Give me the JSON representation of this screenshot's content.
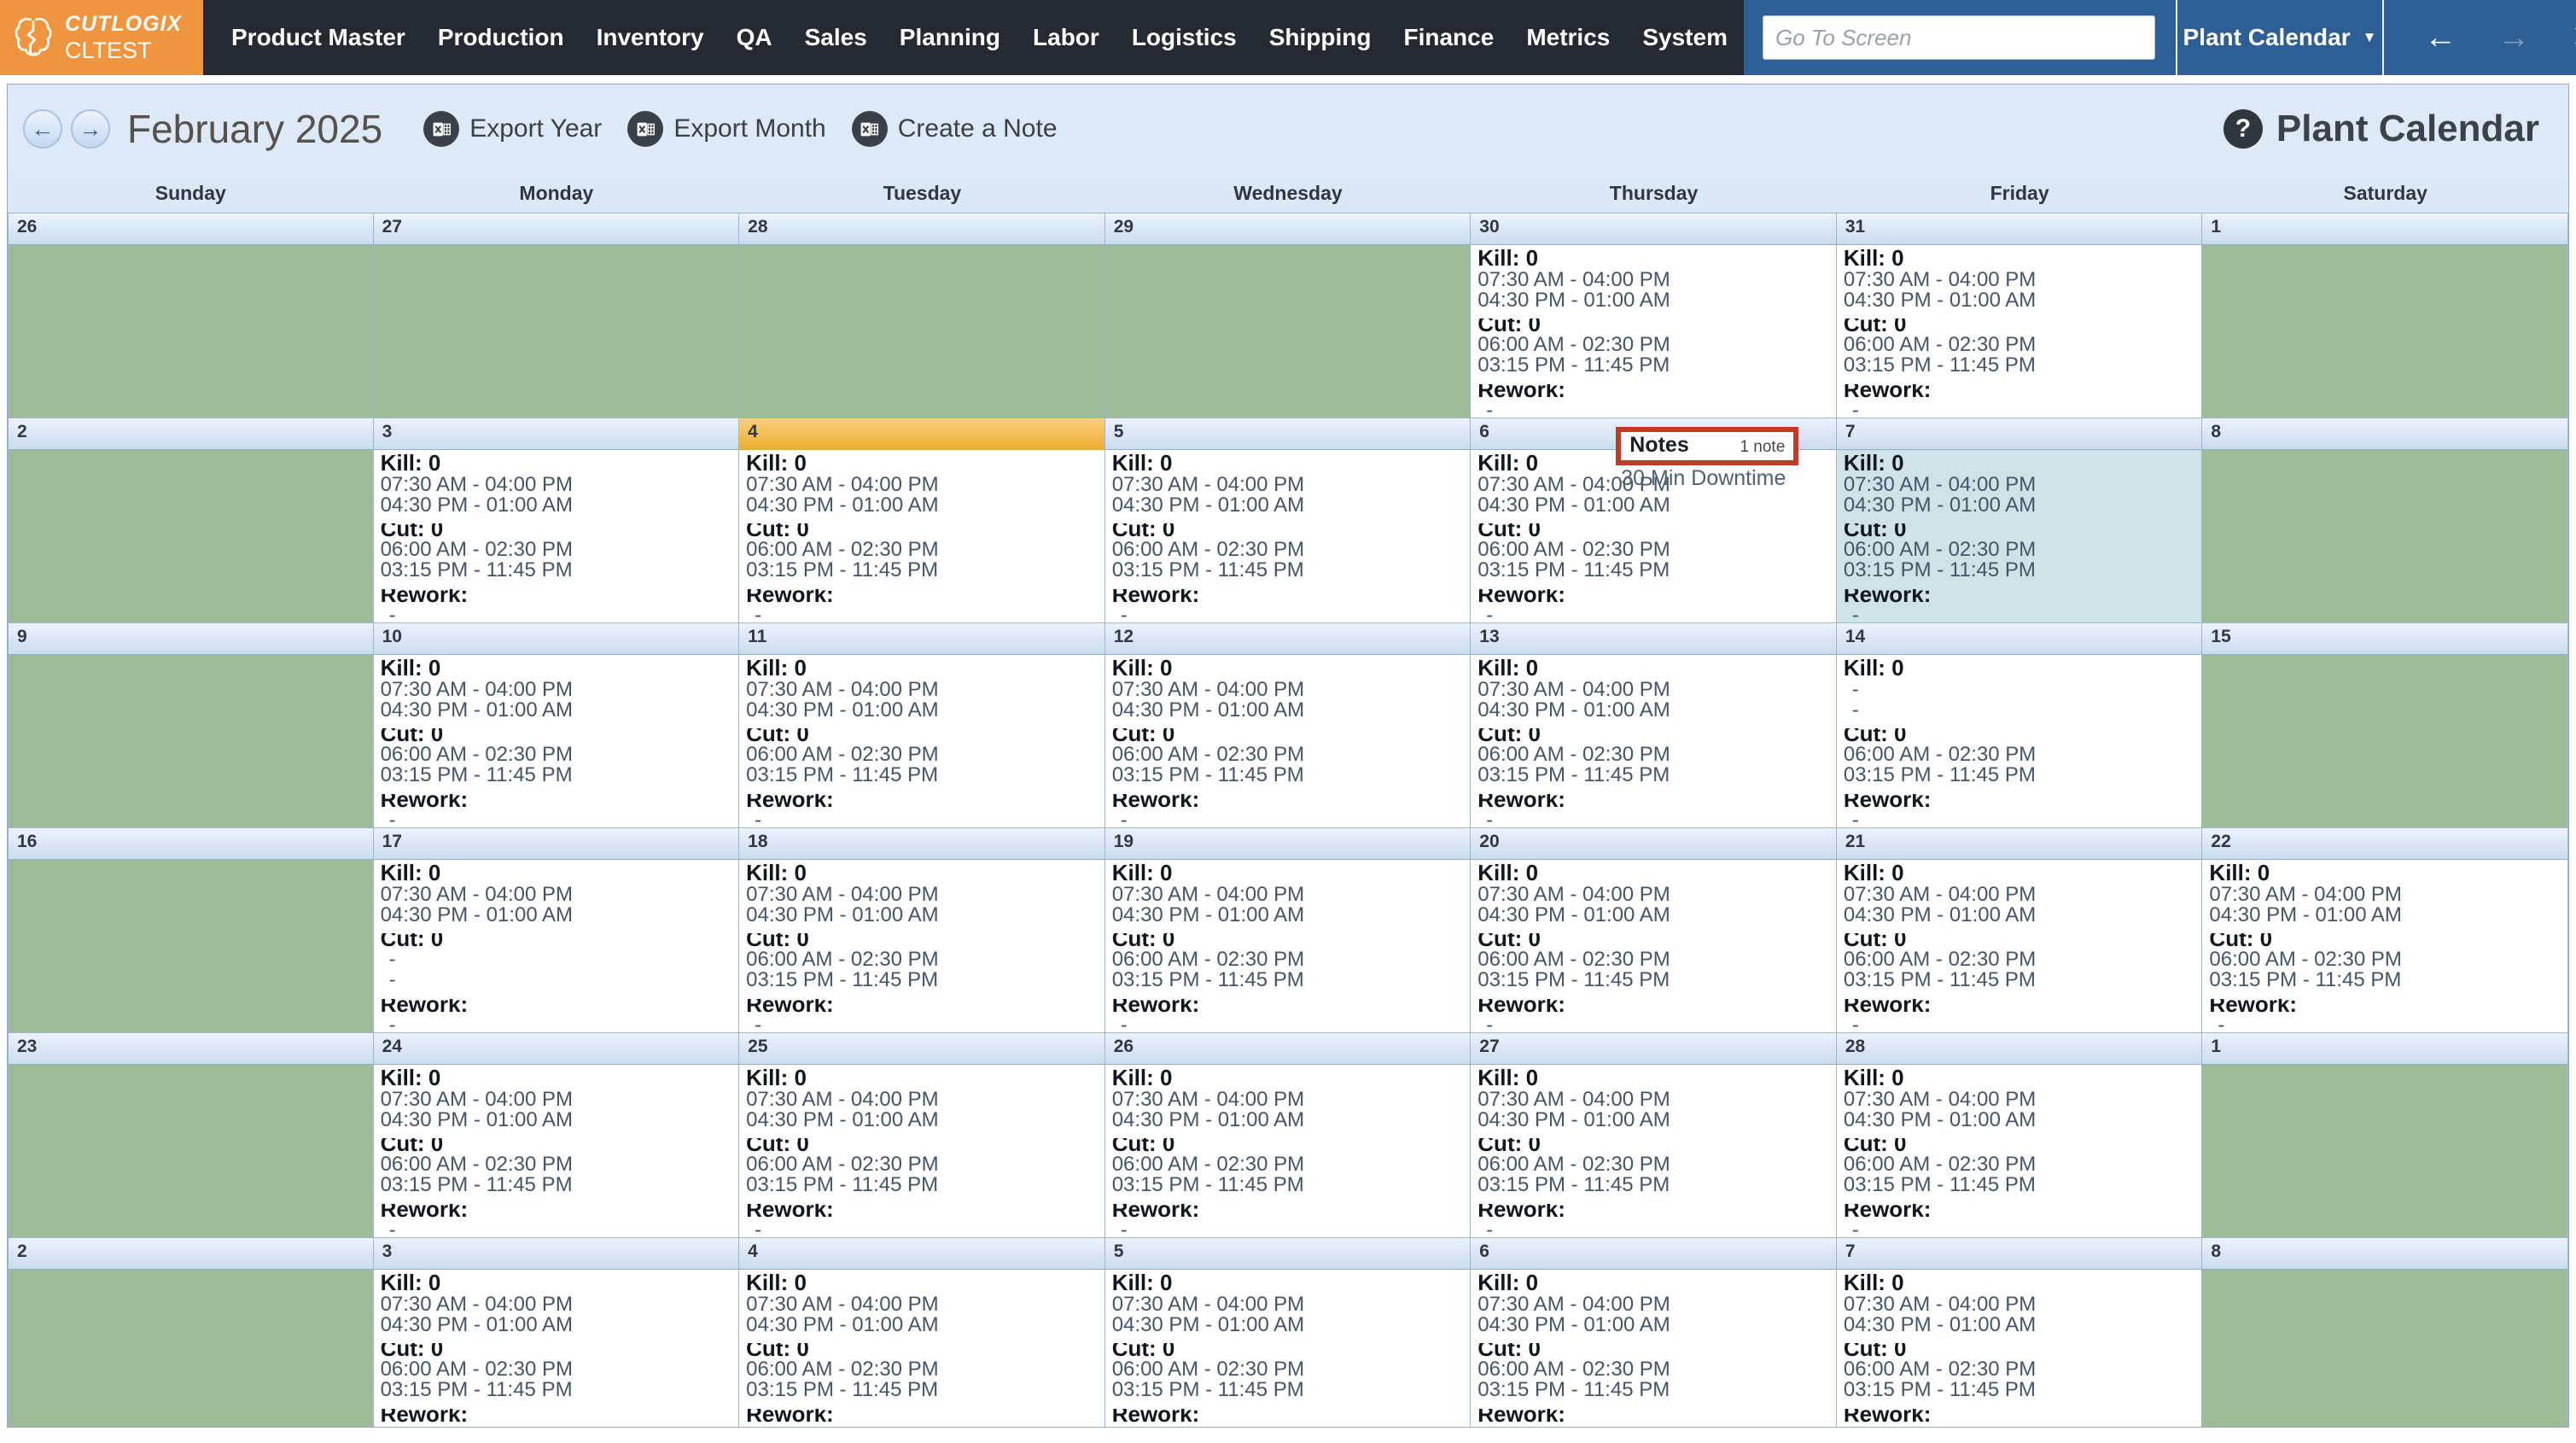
{
  "nav": {
    "brand_name": "CUTLOGIX",
    "brand_env": "CLTEST",
    "menu": [
      "Product Master",
      "Production",
      "Inventory",
      "QA",
      "Sales",
      "Planning",
      "Labor",
      "Logistics",
      "Shipping",
      "Finance",
      "Metrics",
      "System"
    ],
    "goto_placeholder": "Go To Screen",
    "screen_selector": "Plant Calendar",
    "dropdown_arrow": "▼",
    "window_icons": {
      "back": "←",
      "forward": "→",
      "close": "✕",
      "favorite": "☆"
    }
  },
  "toolbar": {
    "prev_icon": "←",
    "next_icon": "→",
    "month_title": "February 2025",
    "buttons": [
      "Export Year",
      "Export Month",
      "Create a Note"
    ],
    "help_icon": "?",
    "page_title": "Plant Calendar"
  },
  "calendar": {
    "weekdays": [
      "Sunday",
      "Monday",
      "Tuesday",
      "Wednesday",
      "Thursday",
      "Friday",
      "Saturday"
    ],
    "section_labels": {
      "kill": "Kill: 0",
      "cut": "Cut: 0",
      "rework": "Rework:"
    },
    "variants": {
      "full": {
        "kill": [
          "07:30 AM - 04:00 PM",
          "04:30 PM - 01:00 AM"
        ],
        "cut": [
          "06:00 AM - 02:30 PM",
          "03:15 PM - 11:45 PM"
        ],
        "rework": [
          "-"
        ]
      },
      "kill_dash": {
        "kill": [
          "-",
          "-"
        ],
        "cut": [
          "06:00 AM - 02:30 PM",
          "03:15 PM - 11:45 PM"
        ],
        "rework": [
          "-"
        ]
      },
      "cut_dash": {
        "kill": [
          "07:30 AM - 04:00 PM",
          "04:30 PM - 01:00 AM"
        ],
        "cut": [
          "-",
          "-"
        ],
        "rework": [
          "-"
        ]
      }
    },
    "note": {
      "title": "Notes",
      "count": "1 note",
      "text": "30 Min Downtime"
    },
    "weeks": [
      [
        {
          "day": "26",
          "type": "off"
        },
        {
          "day": "27",
          "type": "off"
        },
        {
          "day": "28",
          "type": "off"
        },
        {
          "day": "29",
          "type": "off"
        },
        {
          "day": "30",
          "type": "work",
          "variant": "full"
        },
        {
          "day": "31",
          "type": "work",
          "variant": "full"
        },
        {
          "day": "1",
          "type": "off"
        }
      ],
      [
        {
          "day": "2",
          "type": "off"
        },
        {
          "day": "3",
          "type": "work",
          "variant": "full"
        },
        {
          "day": "4",
          "type": "work",
          "variant": "full",
          "selected": true
        },
        {
          "day": "5",
          "type": "work",
          "variant": "full"
        },
        {
          "day": "6",
          "type": "work",
          "variant": "full",
          "note": true
        },
        {
          "day": "7",
          "type": "work",
          "variant": "full",
          "today": true
        },
        {
          "day": "8",
          "type": "off"
        }
      ],
      [
        {
          "day": "9",
          "type": "off"
        },
        {
          "day": "10",
          "type": "work",
          "variant": "full"
        },
        {
          "day": "11",
          "type": "work",
          "variant": "full"
        },
        {
          "day": "12",
          "type": "work",
          "variant": "full"
        },
        {
          "day": "13",
          "type": "work",
          "variant": "full"
        },
        {
          "day": "14",
          "type": "work",
          "variant": "kill_dash"
        },
        {
          "day": "15",
          "type": "off"
        }
      ],
      [
        {
          "day": "16",
          "type": "off"
        },
        {
          "day": "17",
          "type": "work",
          "variant": "cut_dash"
        },
        {
          "day": "18",
          "type": "work",
          "variant": "full"
        },
        {
          "day": "19",
          "type": "work",
          "variant": "full"
        },
        {
          "day": "20",
          "type": "work",
          "variant": "full"
        },
        {
          "day": "21",
          "type": "work",
          "variant": "full"
        },
        {
          "day": "22",
          "type": "work",
          "variant": "full"
        }
      ],
      [
        {
          "day": "23",
          "type": "off"
        },
        {
          "day": "24",
          "type": "work",
          "variant": "full"
        },
        {
          "day": "25",
          "type": "work",
          "variant": "full"
        },
        {
          "day": "26",
          "type": "work",
          "variant": "full"
        },
        {
          "day": "27",
          "type": "work",
          "variant": "full"
        },
        {
          "day": "28",
          "type": "work",
          "variant": "full"
        },
        {
          "day": "1",
          "type": "off"
        }
      ],
      [
        {
          "day": "2",
          "type": "off"
        },
        {
          "day": "3",
          "type": "work",
          "variant": "full"
        },
        {
          "day": "4",
          "type": "work",
          "variant": "full"
        },
        {
          "day": "5",
          "type": "work",
          "variant": "full"
        },
        {
          "day": "6",
          "type": "work",
          "variant": "full"
        },
        {
          "day": "7",
          "type": "work",
          "variant": "full"
        },
        {
          "day": "8",
          "type": "off"
        }
      ]
    ]
  },
  "colors": {
    "nav_bg": "#252a32",
    "brand_orange": "#f0953f",
    "window_blue": "#2d5f95",
    "panel_bg": "#dde9f7",
    "off_day_green": "#9dbb96",
    "today_cyan": "#cfe2e6",
    "selected_orange": "#eaa83c",
    "note_red": "#c13a24"
  }
}
